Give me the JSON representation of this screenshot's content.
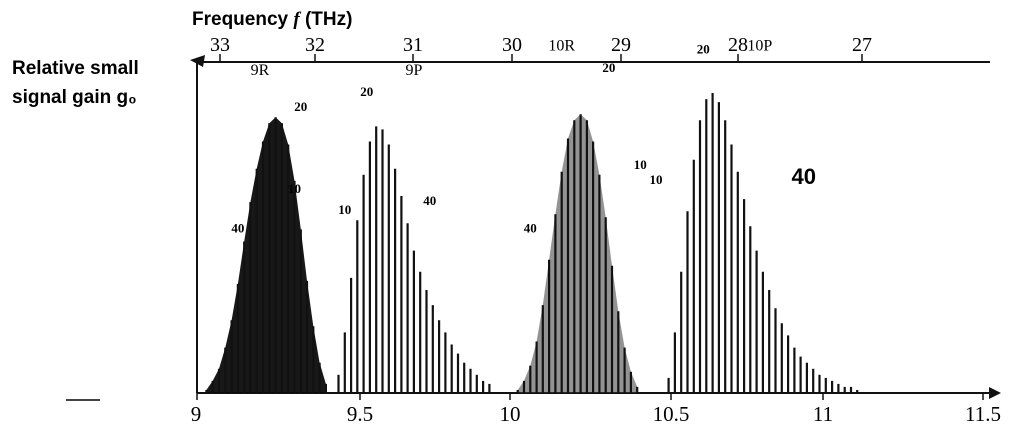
{
  "chart_data": {
    "type": "bar",
    "top_axis": {
      "label": "Frequency f (THz)",
      "label_main": "Frequency ",
      "label_var": "f",
      "label_unit": " (THz)",
      "ticks": [
        "33",
        "32",
        "31",
        "30",
        "29",
        "28",
        "27"
      ]
    },
    "bottom_axis": {
      "label": "",
      "ticks": [
        "9",
        "9.5",
        "10",
        "10.5",
        "11",
        "11.5"
      ],
      "range": [
        9,
        11.5
      ]
    },
    "ylabel": [
      "Relative small",
      "signal gain g₀"
    ],
    "ylim": [
      0,
      1
    ],
    "grid": false,
    "series": [
      {
        "name": "9R",
        "color": "#111111",
        "lines": [
          {
            "x": 9.03,
            "y": 0.01
          },
          {
            "x": 9.05,
            "y": 0.04
          },
          {
            "x": 9.07,
            "y": 0.08
          },
          {
            "x": 9.09,
            "y": 0.15
          },
          {
            "x": 9.11,
            "y": 0.24
          },
          {
            "x": 9.13,
            "y": 0.36
          },
          {
            "x": 9.15,
            "y": 0.5
          },
          {
            "x": 9.17,
            "y": 0.63
          },
          {
            "x": 9.19,
            "y": 0.74
          },
          {
            "x": 9.21,
            "y": 0.83
          },
          {
            "x": 9.23,
            "y": 0.89
          },
          {
            "x": 9.25,
            "y": 0.91
          },
          {
            "x": 9.27,
            "y": 0.89
          },
          {
            "x": 9.29,
            "y": 0.82
          },
          {
            "x": 9.31,
            "y": 0.7
          },
          {
            "x": 9.33,
            "y": 0.54
          },
          {
            "x": 9.35,
            "y": 0.37
          },
          {
            "x": 9.37,
            "y": 0.22
          },
          {
            "x": 9.39,
            "y": 0.1
          },
          {
            "x": 9.41,
            "y": 0.03
          }
        ]
      },
      {
        "name": "9P",
        "color": "#111111",
        "lines": [
          {
            "x": 9.45,
            "y": 0.06
          },
          {
            "x": 9.47,
            "y": 0.2
          },
          {
            "x": 9.49,
            "y": 0.38
          },
          {
            "x": 9.51,
            "y": 0.57
          },
          {
            "x": 9.53,
            "y": 0.72
          },
          {
            "x": 9.55,
            "y": 0.83
          },
          {
            "x": 9.57,
            "y": 0.88
          },
          {
            "x": 9.59,
            "y": 0.87
          },
          {
            "x": 9.61,
            "y": 0.82
          },
          {
            "x": 9.63,
            "y": 0.74
          },
          {
            "x": 9.65,
            "y": 0.65
          },
          {
            "x": 9.67,
            "y": 0.56
          },
          {
            "x": 9.69,
            "y": 0.47
          },
          {
            "x": 9.71,
            "y": 0.4
          },
          {
            "x": 9.73,
            "y": 0.34
          },
          {
            "x": 9.75,
            "y": 0.29
          },
          {
            "x": 9.77,
            "y": 0.24
          },
          {
            "x": 9.79,
            "y": 0.2
          },
          {
            "x": 9.81,
            "y": 0.16
          },
          {
            "x": 9.83,
            "y": 0.13
          },
          {
            "x": 9.85,
            "y": 0.1
          },
          {
            "x": 9.87,
            "y": 0.08
          },
          {
            "x": 9.89,
            "y": 0.06
          },
          {
            "x": 9.91,
            "y": 0.04
          },
          {
            "x": 9.93,
            "y": 0.03
          }
        ]
      },
      {
        "name": "10R",
        "color": "#111111",
        "lines": [
          {
            "x": 10.02,
            "y": 0.01
          },
          {
            "x": 10.04,
            "y": 0.04
          },
          {
            "x": 10.06,
            "y": 0.09
          },
          {
            "x": 10.08,
            "y": 0.17
          },
          {
            "x": 10.1,
            "y": 0.29
          },
          {
            "x": 10.12,
            "y": 0.44
          },
          {
            "x": 10.14,
            "y": 0.59
          },
          {
            "x": 10.16,
            "y": 0.73
          },
          {
            "x": 10.18,
            "y": 0.84
          },
          {
            "x": 10.2,
            "y": 0.9
          },
          {
            "x": 10.22,
            "y": 0.92
          },
          {
            "x": 10.24,
            "y": 0.9
          },
          {
            "x": 10.26,
            "y": 0.83
          },
          {
            "x": 10.28,
            "y": 0.72
          },
          {
            "x": 10.3,
            "y": 0.58
          },
          {
            "x": 10.32,
            "y": 0.42
          },
          {
            "x": 10.34,
            "y": 0.27
          },
          {
            "x": 10.36,
            "y": 0.15
          },
          {
            "x": 10.38,
            "y": 0.07
          },
          {
            "x": 10.4,
            "y": 0.02
          }
        ]
      },
      {
        "name": "10P",
        "color": "#111111",
        "lines": [
          {
            "x": 10.5,
            "y": 0.05
          },
          {
            "x": 10.52,
            "y": 0.2
          },
          {
            "x": 10.54,
            "y": 0.4
          },
          {
            "x": 10.56,
            "y": 0.6
          },
          {
            "x": 10.58,
            "y": 0.77
          },
          {
            "x": 10.6,
            "y": 0.9
          },
          {
            "x": 10.62,
            "y": 0.97
          },
          {
            "x": 10.64,
            "y": 0.99
          },
          {
            "x": 10.66,
            "y": 0.96
          },
          {
            "x": 10.68,
            "y": 0.9
          },
          {
            "x": 10.7,
            "y": 0.82
          },
          {
            "x": 10.72,
            "y": 0.73
          },
          {
            "x": 10.74,
            "y": 0.64
          },
          {
            "x": 10.76,
            "y": 0.55
          },
          {
            "x": 10.78,
            "y": 0.47
          },
          {
            "x": 10.8,
            "y": 0.4
          },
          {
            "x": 10.82,
            "y": 0.34
          },
          {
            "x": 10.84,
            "y": 0.28
          },
          {
            "x": 10.86,
            "y": 0.23
          },
          {
            "x": 10.88,
            "y": 0.19
          },
          {
            "x": 10.9,
            "y": 0.15
          },
          {
            "x": 10.92,
            "y": 0.12
          },
          {
            "x": 10.94,
            "y": 0.1
          },
          {
            "x": 10.96,
            "y": 0.08
          },
          {
            "x": 10.98,
            "y": 0.06
          },
          {
            "x": 11.0,
            "y": 0.05
          },
          {
            "x": 11.02,
            "y": 0.04
          },
          {
            "x": 11.04,
            "y": 0.03
          },
          {
            "x": 11.06,
            "y": 0.02
          },
          {
            "x": 11.08,
            "y": 0.02
          },
          {
            "x": 11.1,
            "y": 0.01
          }
        ]
      }
    ],
    "band_labels": [
      {
        "text": "9R",
        "x": 9.2,
        "y": 1.05
      },
      {
        "text": "9P",
        "x": 9.69,
        "y": 1.05
      },
      {
        "text": "10R",
        "x": 10.16,
        "y": 1.13
      },
      {
        "text": "10P",
        "x": 10.79,
        "y": 1.13
      }
    ],
    "annotations": [
      {
        "text": "20",
        "x": 9.33,
        "y": 0.93
      },
      {
        "text": "10",
        "x": 9.31,
        "y": 0.66
      },
      {
        "text": "10",
        "x": 9.47,
        "y": 0.59
      },
      {
        "text": "40",
        "x": 9.13,
        "y": 0.53
      },
      {
        "text": "20",
        "x": 9.54,
        "y": 0.98
      },
      {
        "text": "40",
        "x": 9.74,
        "y": 0.62
      },
      {
        "text": "20",
        "x": 10.31,
        "y": 1.06
      },
      {
        "text": "10",
        "x": 10.41,
        "y": 0.74
      },
      {
        "text": "10",
        "x": 10.46,
        "y": 0.69
      },
      {
        "text": "40",
        "x": 10.06,
        "y": 0.53
      },
      {
        "text": "20",
        "x": 10.61,
        "y": 1.12
      },
      {
        "text": "40",
        "x": 10.93,
        "y": 0.69
      }
    ]
  }
}
